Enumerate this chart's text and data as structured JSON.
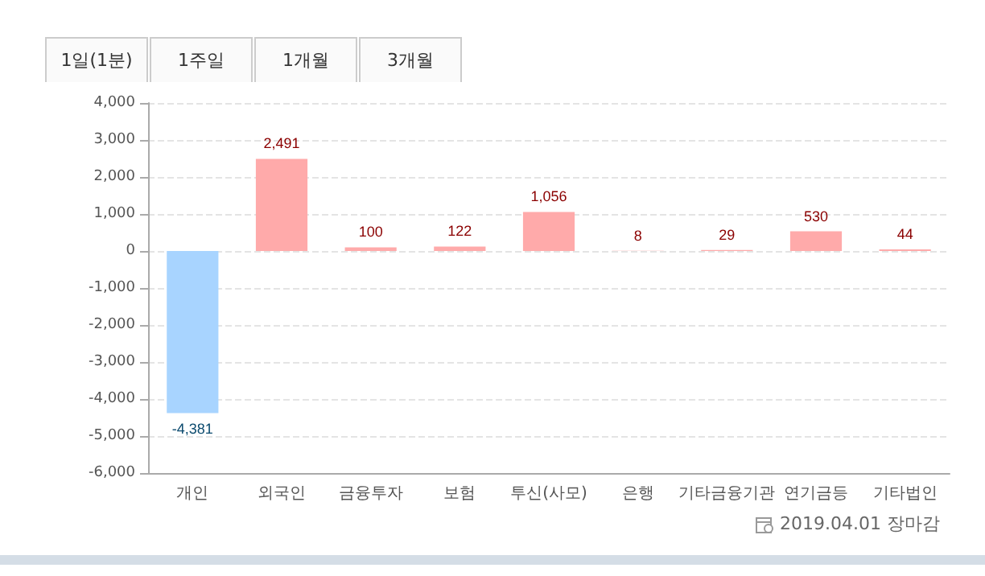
{
  "chart_data": {
    "type": "bar",
    "categories": [
      "개인",
      "외국인",
      "금융투자",
      "보험",
      "투신(사모)",
      "은행",
      "기타금융기관",
      "연기금등",
      "기타법인"
    ],
    "values": [
      -4381,
      2491,
      100,
      122,
      1056,
      8,
      29,
      530,
      44
    ],
    "colors": [
      "#a8d4ff",
      "#ffaaaa",
      "#ffaaaa",
      "#ffaaaa",
      "#ffaaaa",
      "#ffaaaa",
      "#ffaaaa",
      "#ffaaaa",
      "#ffaaaa"
    ],
    "value_labels": [
      "-4,381",
      "2,491",
      "100",
      "122",
      "1,056",
      "8",
      "29",
      "530",
      "44"
    ],
    "ylim": [
      -6000,
      4000
    ],
    "yticks": [
      {
        "value": -6000,
        "label": "-6,000"
      },
      {
        "value": -5000,
        "label": "-5,000"
      },
      {
        "value": -4000,
        "label": "-4,000"
      },
      {
        "value": -3000,
        "label": "-3,000"
      },
      {
        "value": -2000,
        "label": "-2,000"
      },
      {
        "value": -1000,
        "label": "-1,000"
      },
      {
        "value": 0,
        "label": "0"
      },
      {
        "value": 1000,
        "label": "1,000"
      },
      {
        "value": 2000,
        "label": "2,000"
      },
      {
        "value": 3000,
        "label": "3,000"
      },
      {
        "value": 4000,
        "label": "4,000"
      }
    ],
    "grid": "y",
    "annotations": [
      "1일(1분)",
      "1주일",
      "1개월",
      "3개월",
      "2019.04.01 장마감"
    ]
  }
}
